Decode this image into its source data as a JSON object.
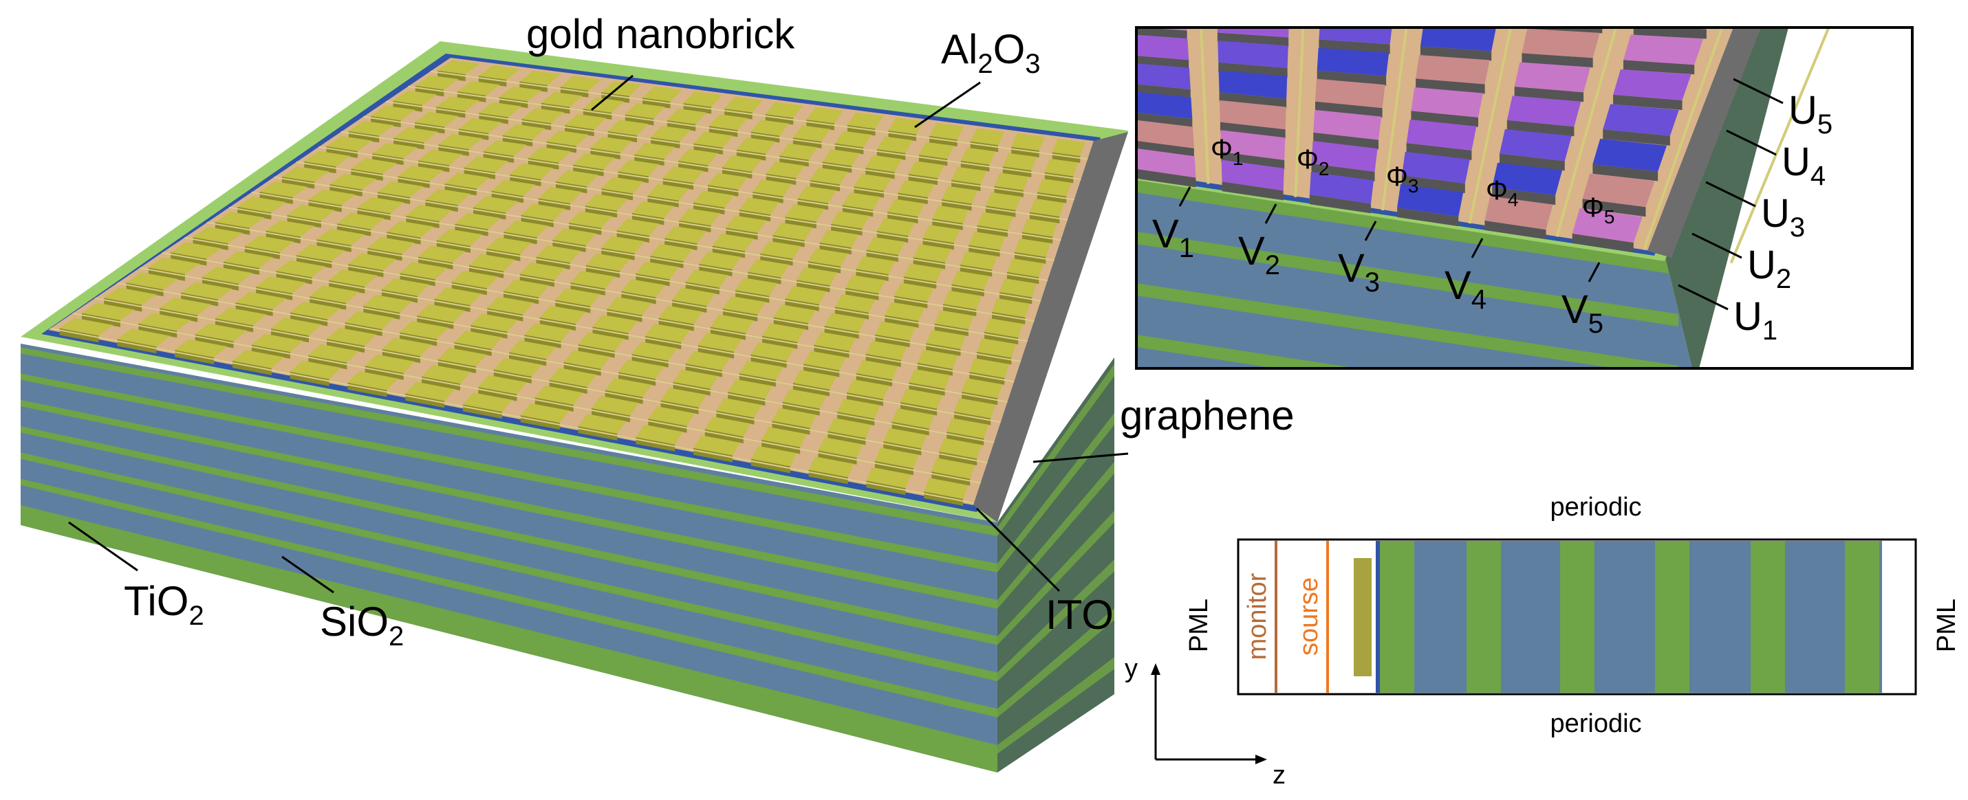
{
  "labels": {
    "gold_nanobrick": "gold nanobrick",
    "al2o3_main": "Al",
    "al2o3_sub2": "2",
    "al2o3_o": "O",
    "al2o3_sub3": "3",
    "graphene": "graphene",
    "ito": "ITO",
    "tio2_main": "TiO",
    "tio2_sub": "2",
    "sio2_main": "SiO",
    "sio2_sub": "2"
  },
  "inset": {
    "phi_symbol": "Φ",
    "phi_indices": [
      "1",
      "2",
      "3",
      "4",
      "5"
    ],
    "v_symbol": "V",
    "v_indices": [
      "1",
      "2",
      "3",
      "4",
      "5"
    ],
    "u_symbol": "U",
    "u_indices": [
      "5",
      "4",
      "3",
      "2",
      "1"
    ]
  },
  "simulation": {
    "top_boundary": "periodic",
    "bottom_boundary": "periodic",
    "left_boundary": "PML",
    "right_boundary": "PML",
    "monitor": "monitor",
    "source": "sourse",
    "axis_y": "y",
    "axis_z": "z"
  },
  "colors": {
    "gold": "#c2c045",
    "gold_side": "#8d8a2a",
    "alumina": "#d9b38a",
    "ito": "#2f55a8",
    "tio2": "#6fa447",
    "tio2_top": "#9ccf6b",
    "sio2": "#5f7fa0",
    "graphene": "#6d6d6d",
    "monitor": "#b56b38",
    "source": "#ee7820",
    "phase_colors": [
      "#c98a8a",
      "#c777c7",
      "#9b59d6",
      "#6b4fd6",
      "#3d45cc"
    ]
  }
}
